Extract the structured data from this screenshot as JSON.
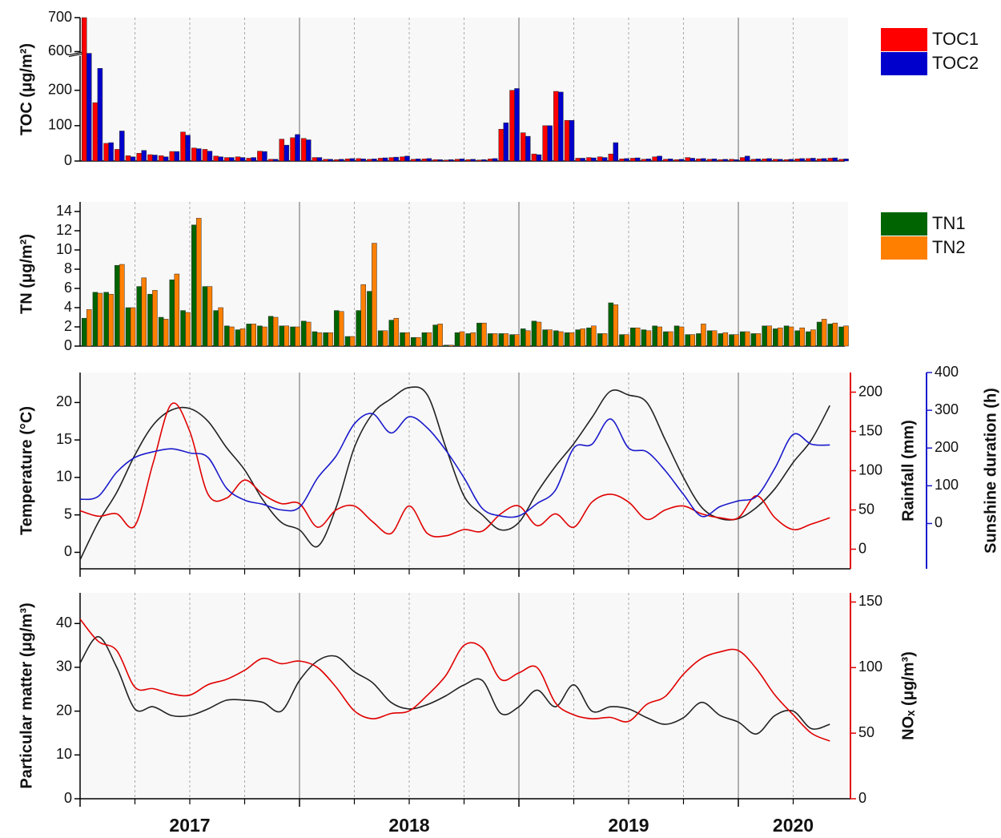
{
  "chart_data": [
    {
      "type": "bar",
      "ylabel": "TOC (μg/m²)",
      "x": [
        2017.03,
        2017.08,
        2017.13,
        2017.18,
        2017.23,
        2017.28,
        2017.33,
        2017.38,
        2017.43,
        2017.48,
        2017.53,
        2017.58,
        2017.63,
        2017.68,
        2017.73,
        2017.78,
        2017.83,
        2017.88,
        2017.93,
        2017.98,
        2018.03,
        2018.08,
        2018.13,
        2018.18,
        2018.23,
        2018.28,
        2018.33,
        2018.38,
        2018.43,
        2018.48,
        2018.53,
        2018.58,
        2018.63,
        2018.68,
        2018.73,
        2018.78,
        2018.83,
        2018.88,
        2018.93,
        2018.98,
        2019.03,
        2019.08,
        2019.13,
        2019.18,
        2019.23,
        2019.28,
        2019.33,
        2019.38,
        2019.43,
        2019.48,
        2019.53,
        2019.58,
        2019.63,
        2019.68,
        2019.73,
        2019.78,
        2019.83,
        2019.88,
        2019.93,
        2019.98,
        2020.03,
        2020.08,
        2020.13,
        2020.18,
        2020.23,
        2020.28,
        2020.33,
        2020.38,
        2020.43,
        2020.48
      ],
      "series": [
        {
          "name": "TOC1",
          "color": "#ff0000",
          "values": [
            700,
            165,
            50,
            33,
            15,
            22,
            18,
            15,
            27,
            82,
            37,
            33,
            14,
            10,
            12,
            8,
            28,
            5,
            62,
            66,
            64,
            10,
            5,
            4,
            6,
            7,
            5,
            8,
            10,
            12,
            5,
            6,
            4,
            3,
            5,
            4,
            3,
            6,
            90,
            200,
            80,
            20,
            100,
            197,
            115,
            8,
            10,
            12,
            20,
            6,
            8,
            5,
            12,
            5,
            4,
            10,
            6,
            5,
            4,
            5,
            10,
            5,
            6,
            5,
            4,
            6,
            7,
            6,
            8,
            5
          ]
        },
        {
          "name": "TOC2",
          "color": "#0000cc",
          "values": [
            595,
            262,
            52,
            85,
            12,
            30,
            17,
            12,
            27,
            73,
            35,
            28,
            12,
            10,
            10,
            10,
            27,
            5,
            45,
            75,
            60,
            10,
            5,
            5,
            7,
            6,
            6,
            9,
            11,
            14,
            6,
            7,
            4,
            4,
            6,
            5,
            4,
            7,
            108,
            205,
            70,
            18,
            100,
            195,
            115,
            8,
            9,
            10,
            52,
            7,
            9,
            6,
            14,
            6,
            5,
            8,
            7,
            6,
            5,
            4,
            14,
            6,
            7,
            5,
            5,
            7,
            8,
            7,
            9,
            6
          ]
        }
      ],
      "xlim": [
        2017,
        2020.5
      ],
      "xgrid_major": [
        2018,
        2019,
        2020
      ],
      "xgrid_minor": [
        2017.25,
        2017.5,
        2017.75,
        2018.25,
        2018.5,
        2018.75,
        2019.25,
        2019.5,
        2019.75,
        2020.25
      ],
      "ylim": [
        0,
        700
      ],
      "axis_break": [
        300,
        595
      ],
      "yticks": [
        0,
        100,
        200,
        600,
        700
      ],
      "legend": "right"
    },
    {
      "type": "bar",
      "ylabel": "TN (μg/m²)",
      "x": [
        2017.03,
        2017.08,
        2017.13,
        2017.18,
        2017.23,
        2017.28,
        2017.33,
        2017.38,
        2017.43,
        2017.48,
        2017.53,
        2017.58,
        2017.63,
        2017.68,
        2017.73,
        2017.78,
        2017.83,
        2017.88,
        2017.93,
        2017.98,
        2018.03,
        2018.08,
        2018.13,
        2018.18,
        2018.23,
        2018.28,
        2018.33,
        2018.38,
        2018.43,
        2018.48,
        2018.53,
        2018.58,
        2018.63,
        2018.68,
        2018.73,
        2018.78,
        2018.83,
        2018.88,
        2018.93,
        2018.98,
        2019.03,
        2019.08,
        2019.13,
        2019.18,
        2019.23,
        2019.28,
        2019.33,
        2019.38,
        2019.43,
        2019.48,
        2019.53,
        2019.58,
        2019.63,
        2019.68,
        2019.73,
        2019.78,
        2019.83,
        2019.88,
        2019.93,
        2019.98,
        2020.03,
        2020.08,
        2020.13,
        2020.18,
        2020.23,
        2020.28,
        2020.33,
        2020.38,
        2020.43,
        2020.48
      ],
      "series": [
        {
          "name": "TN1",
          "color": "#006400",
          "values": [
            2.9,
            5.6,
            5.6,
            8.4,
            4.0,
            6.2,
            5.4,
            3.0,
            6.9,
            3.7,
            12.6,
            6.2,
            3.7,
            2.1,
            1.7,
            2.3,
            2.1,
            3.1,
            2.1,
            2.0,
            2.6,
            1.5,
            1.4,
            3.7,
            1.0,
            3.7,
            5.7,
            1.6,
            2.7,
            1.4,
            0.9,
            1.4,
            2.2,
            0.1,
            1.4,
            1.3,
            2.4,
            1.3,
            1.3,
            1.2,
            1.8,
            2.6,
            1.7,
            1.6,
            1.4,
            1.7,
            1.9,
            1.3,
            4.5,
            1.2,
            1.9,
            1.7,
            2.1,
            1.5,
            2.1,
            1.2,
            1.3,
            1.6,
            1.3,
            1.2,
            1.5,
            1.3,
            2.1,
            1.8,
            2.1,
            1.6,
            1.5,
            2.5,
            2.3,
            2.0
          ]
        },
        {
          "name": "TN2",
          "color": "#ff8000",
          "values": [
            3.8,
            5.5,
            5.4,
            8.5,
            4.0,
            7.1,
            5.8,
            2.8,
            7.5,
            3.5,
            13.3,
            6.2,
            4.0,
            2.0,
            1.8,
            2.3,
            2.0,
            3.0,
            2.1,
            2.0,
            2.5,
            1.4,
            1.4,
            3.6,
            1.0,
            6.4,
            10.7,
            1.6,
            2.9,
            1.4,
            0.9,
            1.4,
            2.3,
            0.1,
            1.5,
            1.4,
            2.4,
            1.3,
            1.3,
            1.2,
            1.6,
            2.5,
            1.7,
            1.5,
            1.4,
            1.8,
            2.1,
            1.3,
            4.3,
            1.2,
            1.9,
            1.6,
            2.0,
            1.5,
            2.0,
            1.2,
            2.3,
            1.6,
            1.4,
            1.2,
            1.5,
            1.3,
            2.1,
            1.9,
            2.0,
            1.9,
            1.7,
            2.8,
            2.4,
            2.1
          ]
        }
      ],
      "xlim": [
        2017,
        2020.5
      ],
      "xgrid_major": [
        2018,
        2019,
        2020
      ],
      "xgrid_minor": [
        2017.25,
        2017.5,
        2017.75,
        2018.25,
        2018.5,
        2018.75,
        2019.25,
        2019.5,
        2019.75,
        2020.25
      ],
      "ylim": [
        0,
        15
      ],
      "yticks": [
        0,
        2,
        4,
        6,
        8,
        10,
        12,
        14
      ],
      "legend": "right"
    },
    {
      "type": "line",
      "ylabel": "Temperature (°C)",
      "y2label": "Rainfall (mm)",
      "y3label": "Sunshine duration (h)",
      "x": [
        2017,
        2017.083,
        2017.167,
        2017.25,
        2017.333,
        2017.417,
        2017.5,
        2017.583,
        2017.667,
        2017.75,
        2017.833,
        2017.917,
        2018,
        2018.083,
        2018.167,
        2018.25,
        2018.333,
        2018.417,
        2018.5,
        2018.583,
        2018.667,
        2018.75,
        2018.833,
        2018.917,
        2019,
        2019.083,
        2019.167,
        2019.25,
        2019.333,
        2019.417,
        2019.5,
        2019.583,
        2019.667,
        2019.75,
        2019.833,
        2019.917,
        2020,
        2020.083,
        2020.167,
        2020.25,
        2020.333,
        2020.417
      ],
      "series": [
        {
          "name": "Temperature",
          "color": "#222222",
          "axis": "y",
          "values": [
            -1,
            4,
            8,
            13,
            17,
            19,
            19.2,
            17.5,
            14,
            11,
            7,
            4,
            3,
            0.8,
            6,
            14,
            18.5,
            20.5,
            22,
            21,
            14,
            7.5,
            5,
            3,
            4,
            8,
            11.5,
            14.5,
            18,
            21.5,
            21,
            20,
            15,
            10,
            6,
            4.5,
            4.5,
            6,
            8.5,
            12,
            15,
            19.6
          ]
        },
        {
          "name": "Rainfall",
          "color": "#e00000",
          "axis": "y2",
          "values": [
            49,
            42,
            45,
            30,
            110,
            185,
            150,
            70,
            65,
            88,
            70,
            58,
            58,
            28,
            50,
            55,
            35,
            20,
            55,
            20,
            17,
            25,
            23,
            45,
            55,
            30,
            45,
            28,
            60,
            70,
            60,
            38,
            50,
            55,
            45,
            40,
            40,
            68,
            40,
            25,
            32,
            40
          ]
        },
        {
          "name": "Sunshine duration",
          "color": "#1a1acc",
          "axis": "y3",
          "values": [
            64,
            72,
            136,
            175,
            190,
            198,
            187,
            175,
            94,
            62,
            51,
            36,
            43,
            121,
            179,
            264,
            291,
            240,
            283,
            253,
            194,
            121,
            40,
            20,
            20,
            53,
            89,
            200,
            210,
            277,
            200,
            190,
            140,
            77,
            19,
            45,
            60,
            72,
            147,
            236,
            210,
            208
          ]
        }
      ],
      "xlim": [
        2017,
        2020.5
      ],
      "xgrid_major": [
        2018,
        2019,
        2020
      ],
      "xgrid_minor": [
        2017.25,
        2017.5,
        2017.75,
        2018.25,
        2018.5,
        2018.75,
        2019.25,
        2019.5,
        2019.75,
        2020.25
      ],
      "ylim": [
        -2.2,
        24
      ],
      "yticks": [
        0,
        5,
        10,
        15,
        20
      ],
      "y2lim": [
        -25,
        225
      ],
      "y2ticks": [
        0,
        50,
        100,
        150,
        200
      ],
      "y3lim": [
        -120,
        400
      ],
      "y3ticks": [
        0,
        100,
        200,
        300,
        400
      ]
    },
    {
      "type": "line",
      "ylabel": "Particular matter (μg/m³)",
      "y2label": "NOₓ (μg/m³)",
      "x": [
        2017,
        2017.083,
        2017.167,
        2017.25,
        2017.333,
        2017.417,
        2017.5,
        2017.583,
        2017.667,
        2017.75,
        2017.833,
        2017.917,
        2018,
        2018.083,
        2018.167,
        2018.25,
        2018.333,
        2018.417,
        2018.5,
        2018.583,
        2018.667,
        2018.75,
        2018.833,
        2018.917,
        2019,
        2019.083,
        2019.167,
        2019.25,
        2019.333,
        2019.417,
        2019.5,
        2019.583,
        2019.667,
        2019.75,
        2019.833,
        2019.917,
        2020,
        2020.083,
        2020.167,
        2020.25,
        2020.333,
        2020.417
      ],
      "series": [
        {
          "name": "Particular matter",
          "color": "#222222",
          "axis": "y",
          "values": [
            31,
            37,
            30,
            20.5,
            21,
            19,
            19,
            20.5,
            22.5,
            22.5,
            22,
            20,
            27,
            31.5,
            32.5,
            29,
            26.5,
            22,
            20.5,
            21.5,
            23.5,
            26,
            27,
            19.5,
            21,
            24.8,
            21,
            26,
            20,
            21,
            20.5,
            18.5,
            17,
            18.5,
            22,
            19,
            17.5,
            14.8,
            19,
            20,
            16,
            17
          ]
        },
        {
          "name": "NOx",
          "color": "#e00000",
          "axis": "y2",
          "values": [
            137,
            120,
            113,
            85,
            84,
            80,
            79,
            87,
            91,
            98,
            107,
            103,
            105,
            100,
            85,
            67,
            61,
            65,
            67,
            79,
            94,
            117,
            115,
            91,
            96,
            100,
            73,
            64,
            61,
            62,
            59,
            72,
            78,
            95,
            107,
            112,
            113,
            99,
            79,
            64,
            50,
            44
          ]
        }
      ],
      "xlim": [
        2017,
        2020.5
      ],
      "xgrid_major": [
        2018,
        2019,
        2020
      ],
      "xgrid_minor": [
        2017.25,
        2017.5,
        2017.75,
        2018.25,
        2018.5,
        2018.75,
        2019.25,
        2019.5,
        2019.75,
        2020.25
      ],
      "xticks": [
        {
          "value": 2017.5,
          "label": "2017"
        },
        {
          "value": 2018.5,
          "label": "2018"
        },
        {
          "value": 2019.5,
          "label": "2019"
        },
        {
          "value": 2020.25,
          "label": "2020"
        }
      ],
      "ylim": [
        0,
        47
      ],
      "yticks": [
        0,
        10,
        20,
        30,
        40
      ],
      "y2lim": [
        0,
        157
      ],
      "y2ticks": [
        0,
        50,
        100,
        150
      ]
    }
  ]
}
